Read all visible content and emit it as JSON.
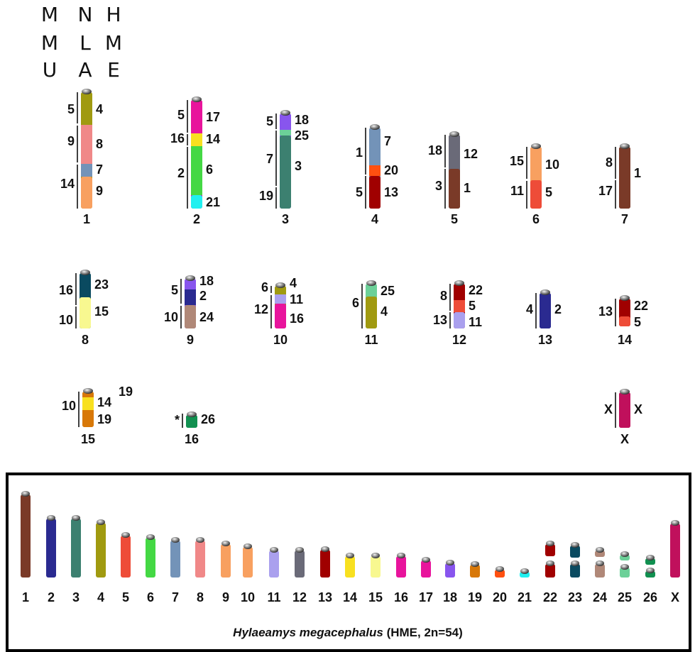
{
  "header": {
    "columns": [
      [
        "M",
        "M",
        "U"
      ],
      [
        "N",
        "L",
        "A"
      ],
      [
        "H",
        "M",
        "E"
      ]
    ]
  },
  "karyotypes": [
    {
      "label": "1",
      "mmu": [
        "5",
        "9",
        "14"
      ],
      "hme": [
        "4",
        "8",
        "7",
        "9"
      ]
    },
    {
      "label": "2",
      "mmu": [
        "5",
        "16",
        "2"
      ],
      "hme": [
        "17",
        "14",
        "6",
        "21"
      ]
    },
    {
      "label": "3",
      "mmu": [
        "5",
        "7",
        "19"
      ],
      "hme": [
        "18",
        "25",
        "3"
      ]
    },
    {
      "label": "4",
      "mmu": [
        "1",
        "5"
      ],
      "hme": [
        "7",
        "20",
        "13"
      ]
    },
    {
      "label": "5",
      "mmu": [
        "18",
        "3"
      ],
      "hme": [
        "12",
        "1"
      ]
    },
    {
      "label": "6",
      "mmu": [
        "15",
        "11"
      ],
      "hme": [
        "10",
        "5"
      ]
    },
    {
      "label": "7",
      "mmu": [
        "8",
        "17"
      ],
      "hme": [
        "1"
      ]
    },
    {
      "label": "8",
      "mmu": [
        "16",
        "10"
      ],
      "hme": [
        "23",
        "15"
      ]
    },
    {
      "label": "9",
      "mmu": [
        "5",
        "10"
      ],
      "hme": [
        "18",
        "2",
        "24"
      ]
    },
    {
      "label": "10",
      "mmu": [
        "6",
        "12"
      ],
      "hme": [
        "4",
        "11",
        "16"
      ]
    },
    {
      "label": "11",
      "mmu": [
        "6"
      ],
      "hme": [
        "25",
        "4"
      ]
    },
    {
      "label": "12",
      "mmu": [
        "8",
        "13"
      ],
      "hme": [
        "22",
        "5",
        "11"
      ]
    },
    {
      "label": "13",
      "mmu": [
        "4"
      ],
      "hme": [
        "2"
      ]
    },
    {
      "label": "14",
      "mmu": [
        "13"
      ],
      "hme": [
        "22",
        "5"
      ]
    },
    {
      "label": "15",
      "mmu": [
        "10"
      ],
      "hme": [
        "19",
        "14",
        "19"
      ]
    },
    {
      "label": "16",
      "mmu": [
        "*"
      ],
      "hme": [
        "26"
      ]
    },
    {
      "label": "X",
      "mmu": [
        "X"
      ],
      "hme": [
        "X"
      ]
    }
  ],
  "hme_karyotype": {
    "labels": [
      "1",
      "2",
      "3",
      "4",
      "5",
      "6",
      "7",
      "8",
      "9",
      "10",
      "11",
      "12",
      "13",
      "14",
      "15",
      "16",
      "17",
      "18",
      "19",
      "20",
      "21",
      "22",
      "23",
      "24",
      "25",
      "26",
      "X"
    ],
    "caption": {
      "species": "Hylaeamys megacephalus",
      "details": "(HME, 2n=54)"
    }
  }
}
